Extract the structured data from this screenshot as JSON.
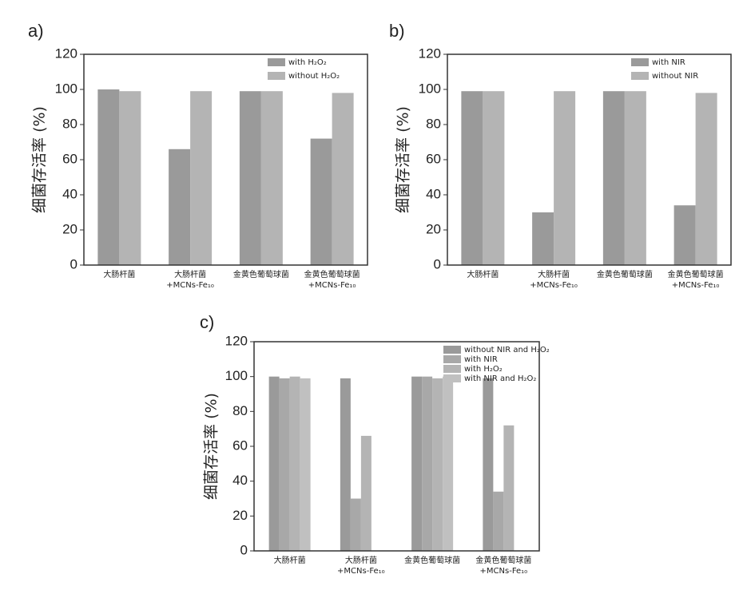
{
  "chart_data": [
    {
      "type": "bar",
      "label": "a)",
      "ylabel": "细菌存活率 (%)",
      "categories": [
        [
          "大肠杆菌"
        ],
        [
          "大肠杆菌",
          "+MCNs-Fe₁₀"
        ],
        [
          "金黄色葡萄球菌"
        ],
        [
          "金黄色葡萄球菌",
          "+MCNs-Fe₁₀"
        ]
      ],
      "series": [
        {
          "name": "with H₂O₂",
          "color": "#9a9a9a",
          "values": [
            100,
            66,
            99,
            72
          ]
        },
        {
          "name": "without H₂O₂",
          "color": "#b4b4b4",
          "values": [
            99,
            99,
            99,
            98
          ]
        }
      ],
      "ylim": [
        0,
        120
      ],
      "yticks": [
        0,
        20,
        40,
        60,
        80,
        100,
        120
      ],
      "legend": "upper right"
    },
    {
      "type": "bar",
      "label": "b)",
      "ylabel": "细菌存活率 (%)",
      "categories": [
        [
          "大肠杆菌"
        ],
        [
          "大肠杆菌",
          "+MCNs-Fe₁₀"
        ],
        [
          "金黄色葡萄球菌"
        ],
        [
          "金黄色葡萄球菌",
          "+MCNs-Fe₁₀"
        ]
      ],
      "series": [
        {
          "name": "with NIR",
          "color": "#9a9a9a",
          "values": [
            99,
            30,
            99,
            34
          ]
        },
        {
          "name": "without NIR",
          "color": "#b4b4b4",
          "values": [
            99,
            99,
            99,
            98
          ]
        }
      ],
      "ylim": [
        0,
        120
      ],
      "yticks": [
        0,
        20,
        40,
        60,
        80,
        100,
        120
      ],
      "legend": "upper right"
    },
    {
      "type": "bar",
      "label": "c)",
      "ylabel": "细菌存活率 (%)",
      "categories": [
        [
          "大肠杆菌"
        ],
        [
          "大肠杆菌",
          "+MCNs-Fe₁₀"
        ],
        [
          "金黄色葡萄球菌"
        ],
        [
          "金黄色葡萄球菌",
          "+MCNs-Fe₁₀"
        ]
      ],
      "series": [
        {
          "name": "without NIR and H₂O₂",
          "color": "#9a9a9a",
          "values": [
            100,
            99,
            100,
            99
          ]
        },
        {
          "name": "with NIR",
          "color": "#a8a8a8",
          "values": [
            99,
            30,
            100,
            34
          ]
        },
        {
          "name": "with H₂O₂",
          "color": "#b4b4b4",
          "values": [
            100,
            66,
            99,
            72
          ]
        },
        {
          "name": "with NIR and H₂O₂",
          "color": "#c0c0c0",
          "values": [
            99,
            0,
            100,
            0
          ]
        }
      ],
      "ylim": [
        0,
        120
      ],
      "yticks": [
        0,
        20,
        40,
        60,
        80,
        100,
        120
      ],
      "legend": "upper right"
    }
  ]
}
